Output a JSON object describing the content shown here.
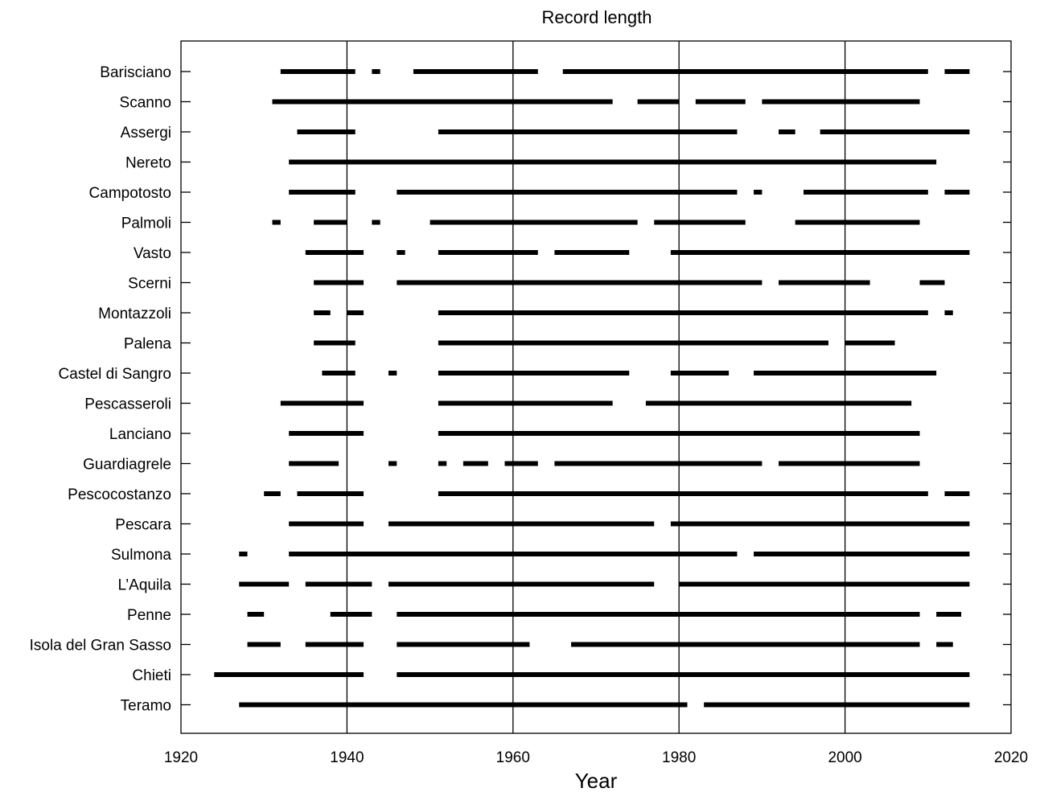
{
  "chart_data": {
    "type": "bar",
    "subtype": "timeline",
    "title": "Record length",
    "xlabel": "Year",
    "ylabel": "",
    "xlim": [
      1920,
      2020
    ],
    "xticks": [
      1920,
      1940,
      1960,
      1980,
      2000,
      2020
    ],
    "grid": "vertical lines at 1940, 1960, 1980, 2000",
    "categories": [
      "Barisciano",
      "Scanno",
      "Assergi",
      "Nereto",
      "Campotosto",
      "Palmoli",
      "Vasto",
      "Scerni",
      "Montazzoli",
      "Palena",
      "Castel di Sangro",
      "Pescasseroli",
      "Lanciano",
      "Guardiagrele",
      "Pescocostanzo",
      "Pescara",
      "Sulmona",
      "L’Aquila",
      "Penne",
      "Isola del Gran Sasso",
      "Chieti",
      "Teramo"
    ],
    "series": [
      {
        "category": "Barisciano",
        "intervals": [
          [
            1932,
            1941
          ],
          [
            1943,
            1944
          ],
          [
            1948,
            1963
          ],
          [
            1966,
            2010
          ],
          [
            2012,
            2015
          ]
        ]
      },
      {
        "category": "Scanno",
        "intervals": [
          [
            1931,
            1972
          ],
          [
            1975,
            1980
          ],
          [
            1982,
            1988
          ],
          [
            1990,
            2009
          ]
        ]
      },
      {
        "category": "Assergi",
        "intervals": [
          [
            1934,
            1941
          ],
          [
            1951,
            1987
          ],
          [
            1992,
            1994
          ],
          [
            1997,
            2015
          ]
        ]
      },
      {
        "category": "Nereto",
        "intervals": [
          [
            1933,
            2011
          ]
        ]
      },
      {
        "category": "Campotosto",
        "intervals": [
          [
            1933,
            1941
          ],
          [
            1946,
            1987
          ],
          [
            1989,
            1990
          ],
          [
            1995,
            2010
          ],
          [
            2012,
            2015
          ]
        ]
      },
      {
        "category": "Palmoli",
        "intervals": [
          [
            1931,
            1932
          ],
          [
            1936,
            1940
          ],
          [
            1943,
            1944
          ],
          [
            1950,
            1975
          ],
          [
            1977,
            1988
          ],
          [
            1994,
            2009
          ]
        ]
      },
      {
        "category": "Vasto",
        "intervals": [
          [
            1935,
            1942
          ],
          [
            1946,
            1947
          ],
          [
            1951,
            1963
          ],
          [
            1965,
            1974
          ],
          [
            1979,
            2015
          ]
        ]
      },
      {
        "category": "Scerni",
        "intervals": [
          [
            1936,
            1942
          ],
          [
            1946,
            1990
          ],
          [
            1992,
            2003
          ],
          [
            2009,
            2012
          ]
        ]
      },
      {
        "category": "Montazzoli",
        "intervals": [
          [
            1936,
            1938
          ],
          [
            1940,
            1942
          ],
          [
            1951,
            2010
          ],
          [
            2012,
            2013
          ]
        ]
      },
      {
        "category": "Palena",
        "intervals": [
          [
            1936,
            1941
          ],
          [
            1951,
            1998
          ],
          [
            2000,
            2006
          ]
        ]
      },
      {
        "category": "Castel di Sangro",
        "intervals": [
          [
            1937,
            1941
          ],
          [
            1945,
            1946
          ],
          [
            1951,
            1974
          ],
          [
            1979,
            1986
          ],
          [
            1989,
            2011
          ]
        ]
      },
      {
        "category": "Pescasseroli",
        "intervals": [
          [
            1932,
            1942
          ],
          [
            1951,
            1972
          ],
          [
            1976,
            2008
          ]
        ]
      },
      {
        "category": "Lanciano",
        "intervals": [
          [
            1933,
            1942
          ],
          [
            1951,
            2009
          ]
        ]
      },
      {
        "category": "Guardiagrele",
        "intervals": [
          [
            1933,
            1939
          ],
          [
            1945,
            1946
          ],
          [
            1951,
            1952
          ],
          [
            1954,
            1957
          ],
          [
            1959,
            1963
          ],
          [
            1965,
            1990
          ],
          [
            1992,
            2009
          ]
        ]
      },
      {
        "category": "Pescocostanzo",
        "intervals": [
          [
            1930,
            1932
          ],
          [
            1934,
            1942
          ],
          [
            1951,
            2010
          ],
          [
            2012,
            2015
          ]
        ]
      },
      {
        "category": "Pescara",
        "intervals": [
          [
            1933,
            1942
          ],
          [
            1945,
            1977
          ],
          [
            1979,
            2015
          ]
        ]
      },
      {
        "category": "Sulmona",
        "intervals": [
          [
            1927,
            1928
          ],
          [
            1933,
            1987
          ],
          [
            1989,
            2015
          ]
        ]
      },
      {
        "category": "L’Aquila",
        "intervals": [
          [
            1927,
            1933
          ],
          [
            1935,
            1943
          ],
          [
            1945,
            1977
          ],
          [
            1980,
            2015
          ]
        ]
      },
      {
        "category": "Penne",
        "intervals": [
          [
            1928,
            1930
          ],
          [
            1938,
            1943
          ],
          [
            1946,
            2009
          ],
          [
            2011,
            2014
          ]
        ]
      },
      {
        "category": "Isola del Gran Sasso",
        "intervals": [
          [
            1928,
            1932
          ],
          [
            1935,
            1942
          ],
          [
            1946,
            1962
          ],
          [
            1967,
            2009
          ],
          [
            2011,
            2013
          ]
        ]
      },
      {
        "category": "Chieti",
        "intervals": [
          [
            1924,
            1942
          ],
          [
            1946,
            2015
          ]
        ]
      },
      {
        "category": "Teramo",
        "intervals": [
          [
            1927,
            1981
          ],
          [
            1983,
            2015
          ]
        ]
      }
    ]
  }
}
